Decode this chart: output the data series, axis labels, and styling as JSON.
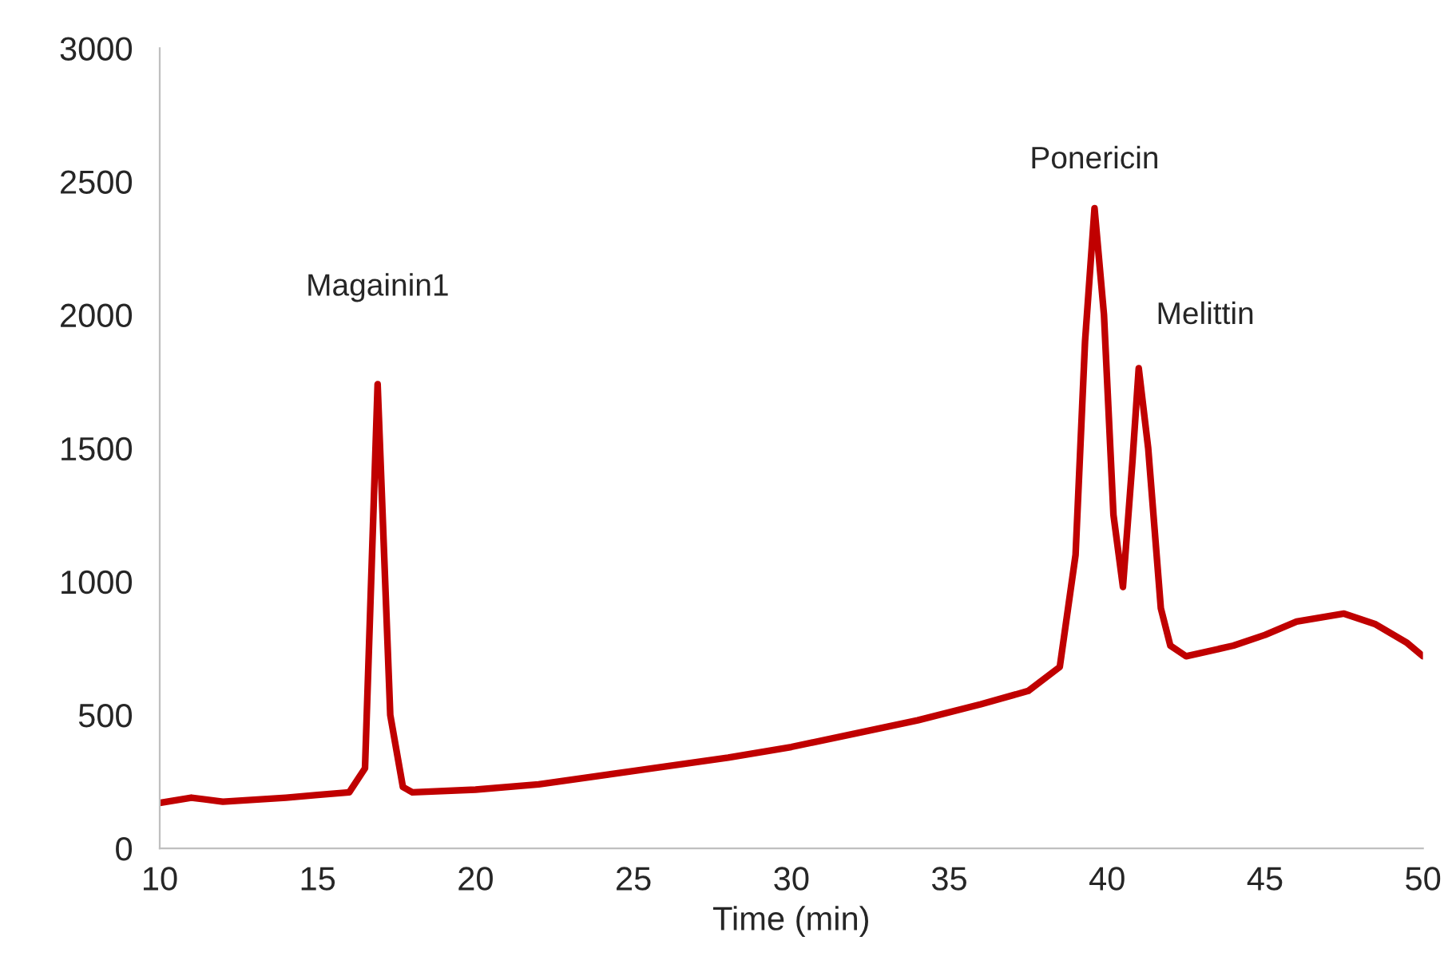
{
  "chart_data": {
    "type": "line",
    "xlabel": "Time (min)",
    "x": [
      10,
      11,
      12,
      14,
      15,
      16,
      16.5,
      16.9,
      17.3,
      17.7,
      18,
      20,
      22,
      25,
      28,
      30,
      32,
      34,
      36,
      37.5,
      38.5,
      39,
      39.3,
      39.6,
      39.9,
      40.2,
      40.5,
      40.8,
      41.0,
      41.3,
      41.7,
      42,
      42.5,
      44,
      45,
      46,
      47.5,
      48.5,
      49.5,
      50
    ],
    "series": [
      {
        "color": "#c00000",
        "values": [
          170,
          190,
          175,
          190,
          200,
          210,
          300,
          1740,
          500,
          230,
          210,
          220,
          240,
          290,
          340,
          380,
          430,
          480,
          540,
          590,
          680,
          1100,
          1900,
          2400,
          2000,
          1250,
          980,
          1450,
          1800,
          1500,
          900,
          760,
          720,
          760,
          800,
          850,
          880,
          840,
          770,
          720
        ]
      }
    ],
    "xlim": [
      10,
      50
    ],
    "ylim": [
      0,
      3000
    ],
    "xticks": [
      10,
      15,
      20,
      25,
      30,
      35,
      40,
      45,
      50
    ],
    "yticks": [
      0,
      500,
      1000,
      1500,
      2000,
      2500,
      3000
    ],
    "grid": false,
    "annotations": [
      {
        "text": "Magainin1",
        "x": 16.9,
        "y": 1740
      },
      {
        "text": "Ponericin",
        "x": 39.6,
        "y": 2400
      },
      {
        "text": "Melittin",
        "x": 41.0,
        "y": 1800
      }
    ]
  }
}
